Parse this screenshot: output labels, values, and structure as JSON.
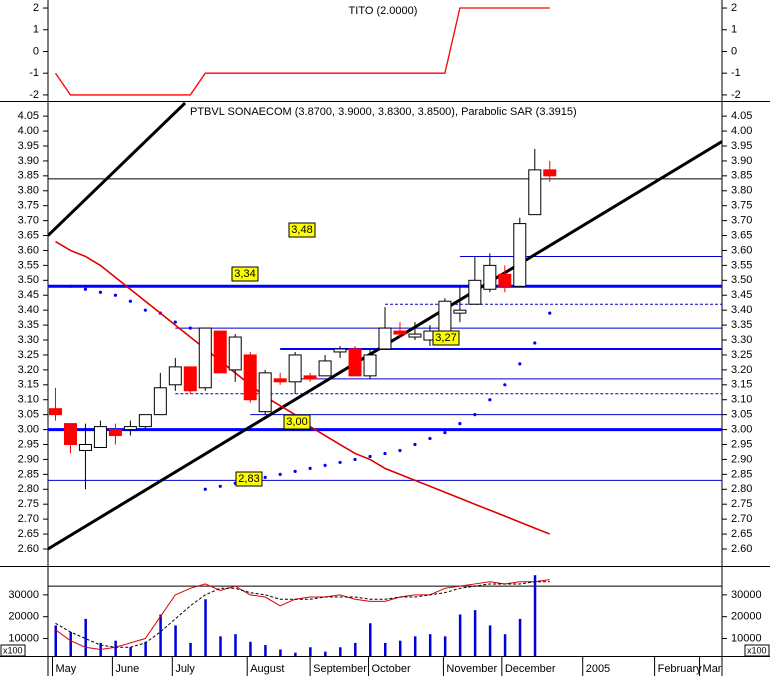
{
  "chart_data": [
    {
      "type": "line",
      "title": "TITO (2.0000)",
      "x": [
        0,
        1,
        2,
        3,
        4,
        5,
        6,
        7,
        8,
        9,
        10,
        11,
        12,
        13,
        14,
        15,
        16,
        17,
        18,
        19,
        20,
        21,
        22,
        23,
        24,
        25,
        26,
        27,
        28,
        29,
        30,
        31,
        32,
        33
      ],
      "series": [
        {
          "color": "#ff0000",
          "values": [
            -1,
            -2,
            -2,
            -2,
            -2,
            -2,
            -2,
            -2,
            -2,
            -2,
            -1,
            -1,
            -1,
            -1,
            -1,
            -1,
            -1,
            -1,
            -1,
            -1,
            -1,
            -1,
            -1,
            -1,
            -1,
            -1,
            -1,
            2,
            2,
            2,
            2,
            2,
            2,
            2
          ]
        }
      ],
      "xlim": [
        -0.5,
        44.5
      ],
      "ylim": [
        -2.28,
        2.37
      ],
      "yticks": [
        2,
        1,
        0,
        -1,
        -2
      ]
    },
    {
      "type": "candlestick",
      "title": "PTBVL SONAECOM (3.8700, 3.9000, 3.8300, 3.8500), Parabolic SAR (3.3915)",
      "x": [
        0,
        1,
        2,
        3,
        4,
        5,
        6,
        7,
        8,
        9,
        10,
        11,
        12,
        13,
        14,
        15,
        16,
        17,
        18,
        19,
        20,
        21,
        22,
        23,
        24,
        25,
        26,
        27,
        28,
        29,
        30,
        31,
        32,
        33
      ],
      "open": [
        3.07,
        3.02,
        2.93,
        2.94,
        3.0,
        3.0,
        3.01,
        3.05,
        3.15,
        3.21,
        3.14,
        3.33,
        3.2,
        3.25,
        3.06,
        3.17,
        3.16,
        3.18,
        3.18,
        3.26,
        3.27,
        3.18,
        3.27,
        3.33,
        3.31,
        3.3,
        3.33,
        3.39,
        3.42,
        3.47,
        3.52,
        3.48,
        3.72,
        3.87
      ],
      "high": [
        3.14,
        3.02,
        3.02,
        3.03,
        3.02,
        3.03,
        3.05,
        3.19,
        3.24,
        3.21,
        3.34,
        3.33,
        3.32,
        3.26,
        3.2,
        3.19,
        3.26,
        3.19,
        3.25,
        3.28,
        3.28,
        3.27,
        3.41,
        3.36,
        3.36,
        3.35,
        3.44,
        3.48,
        3.58,
        3.59,
        3.55,
        3.71,
        3.94,
        3.9
      ],
      "low": [
        3.03,
        2.92,
        2.8,
        2.94,
        2.95,
        2.98,
        3.0,
        3.05,
        3.13,
        3.12,
        3.13,
        3.19,
        3.16,
        3.09,
        3.05,
        3.15,
        3.12,
        3.16,
        3.18,
        3.24,
        3.18,
        3.17,
        3.27,
        3.31,
        3.3,
        3.28,
        3.31,
        3.36,
        3.42,
        3.46,
        3.46,
        3.48,
        3.72,
        3.83
      ],
      "close": [
        3.05,
        2.95,
        2.95,
        3.01,
        2.98,
        3.01,
        3.05,
        3.14,
        3.21,
        3.13,
        3.34,
        3.19,
        3.31,
        3.1,
        3.19,
        3.16,
        3.25,
        3.17,
        3.23,
        3.27,
        3.18,
        3.25,
        3.34,
        3.32,
        3.32,
        3.33,
        3.43,
        3.4,
        3.5,
        3.55,
        3.48,
        3.69,
        3.87,
        3.85
      ],
      "up_color": "#ffffff",
      "down_color": "#ff0000",
      "series": [
        {
          "style": "dots",
          "color": "#0000ff",
          "values": [
            null,
            3.48,
            3.47,
            3.46,
            3.45,
            3.43,
            3.4,
            3.39,
            3.36,
            3.34,
            2.8,
            2.81,
            2.82,
            2.83,
            2.84,
            2.85,
            2.86,
            2.87,
            2.88,
            2.89,
            2.9,
            2.91,
            2.92,
            2.93,
            2.95,
            2.97,
            2.99,
            3.02,
            3.05,
            3.1,
            3.15,
            3.22,
            3.29,
            3.39
          ]
        },
        {
          "style": "line",
          "color": "#e00000",
          "values": [
            3.63,
            3.6,
            3.58,
            3.55,
            3.51,
            3.47,
            3.43,
            3.39,
            3.35,
            3.31,
            3.27,
            3.23,
            3.19,
            3.15,
            3.11,
            3.08,
            3.05,
            3.01,
            2.98,
            2.95,
            2.92,
            2.9,
            2.87,
            2.85,
            2.83,
            2.81,
            2.79,
            2.77,
            2.75,
            2.73,
            2.71,
            2.69,
            2.67,
            2.65
          ]
        }
      ],
      "levels": [
        {
          "value": 3.48,
          "label": "3,48",
          "color": "#0000ff",
          "width": 3
        },
        {
          "value": 3.0,
          "label": "3,00",
          "color": "#0000ff",
          "width": 3
        },
        {
          "value": 3.34,
          "label": "3,34",
          "color": "#0000cc",
          "width": 1,
          "from": 8
        },
        {
          "value": 3.27,
          "label": "3,27",
          "color": "#0000ff",
          "width": 2,
          "from": 15
        },
        {
          "value": 2.83,
          "label": "2,83",
          "color": "#0000cc",
          "width": 1
        },
        {
          "value": 3.84,
          "color": "#000000",
          "width": 1
        },
        {
          "value": 3.58,
          "color": "#0000cc",
          "width": 1,
          "from": 27
        },
        {
          "value": 3.42,
          "color": "#0000cc",
          "width": 1,
          "from": 22,
          "dashed": true
        },
        {
          "value": 3.17,
          "color": "#0000cc",
          "width": 1,
          "from": 16
        },
        {
          "value": 3.12,
          "color": "#0000cc",
          "width": 1,
          "from": 8,
          "dashed": true
        },
        {
          "value": 3.05,
          "color": "#0000cc",
          "width": 1,
          "from": 13
        }
      ],
      "trend_lines": [
        {
          "color": "#000000",
          "x": [
            -0.5,
            8.65
          ],
          "y": [
            3.65,
            4.094
          ]
        },
        {
          "color": "#000000",
          "x": [
            -0.5,
            44.5
          ],
          "y": [
            2.6,
            3.965
          ]
        }
      ],
      "xlim": [
        -0.5,
        44.5
      ],
      "ylim": [
        2.543,
        4.094
      ],
      "yticks": [
        {
          "value": 4.05,
          "label": "4.05"
        },
        {
          "value": 4.0,
          "label": "4.00"
        },
        {
          "value": 3.95,
          "label": "3.95"
        },
        {
          "value": 3.9,
          "label": "3.90"
        },
        {
          "value": 3.85,
          "label": "3.85"
        },
        {
          "value": 3.8,
          "label": "3.80"
        },
        {
          "value": 3.75,
          "label": "3.75"
        },
        {
          "value": 3.7,
          "label": "3.70"
        },
        {
          "value": 3.65,
          "label": "3.65"
        },
        {
          "value": 3.6,
          "label": "3.60"
        },
        {
          "value": 3.55,
          "label": "3.55"
        },
        {
          "value": 3.5,
          "label": "3.50"
        },
        {
          "value": 3.45,
          "label": "3.45"
        },
        {
          "value": 3.4,
          "label": "3.40"
        },
        {
          "value": 3.35,
          "label": "3.35"
        },
        {
          "value": 3.3,
          "label": "3.30"
        },
        {
          "value": 3.25,
          "label": "3.25"
        },
        {
          "value": 3.2,
          "label": "3.20"
        },
        {
          "value": 3.15,
          "label": "3.15"
        },
        {
          "value": 3.1,
          "label": "3.10"
        },
        {
          "value": 3.05,
          "label": "3.05"
        },
        {
          "value": 3.0,
          "label": "3.00"
        },
        {
          "value": 2.95,
          "label": "2.95"
        },
        {
          "value": 2.9,
          "label": "2.90"
        },
        {
          "value": 2.85,
          "label": "2.85"
        },
        {
          "value": 2.8,
          "label": "2.80"
        },
        {
          "value": 2.75,
          "label": "2.75"
        },
        {
          "value": 2.7,
          "label": "2.70"
        },
        {
          "value": 2.65,
          "label": "2.65"
        },
        {
          "value": 2.6,
          "label": "2.60"
        }
      ]
    },
    {
      "type": "bar",
      "y_unit": "x100",
      "x": [
        0,
        1,
        2,
        3,
        4,
        5,
        6,
        7,
        8,
        9,
        10,
        11,
        12,
        13,
        14,
        15,
        16,
        17,
        18,
        19,
        20,
        21,
        22,
        23,
        24,
        25,
        26,
        27,
        28,
        29,
        30,
        31,
        32,
        33
      ],
      "values": [
        16000,
        13000,
        19000,
        8000,
        9000,
        6000,
        8500,
        21000,
        16000,
        8000,
        28000,
        11000,
        12000,
        8500,
        7000,
        5000,
        3500,
        6000,
        4000,
        6000,
        8000,
        17000,
        8000,
        9000,
        11000,
        12000,
        11000,
        21000,
        23000,
        16000,
        12000,
        19000,
        39000,
        2000
      ],
      "color": "#0000dd",
      "lines": [
        {
          "color": "#e00000",
          "values": [
            14000,
            9000,
            6000,
            5000,
            6000,
            8000,
            10000,
            20000,
            30000,
            33000,
            35000,
            32000,
            34000,
            30000,
            29000,
            25000,
            28000,
            29000,
            29000,
            30000,
            28000,
            27000,
            27000,
            29000,
            30000,
            30000,
            33000,
            34000,
            35000,
            36000,
            35000,
            36000,
            36000,
            37000
          ]
        },
        {
          "color": "#000000",
          "dashed": true,
          "values": [
            17000,
            13000,
            10000,
            7000,
            6000,
            6000,
            8000,
            13000,
            19000,
            25000,
            30000,
            33000,
            33000,
            31000,
            30000,
            28000,
            28000,
            28000,
            29000,
            29000,
            29000,
            28000,
            28000,
            29000,
            29000,
            30000,
            31000,
            33000,
            34000,
            35000,
            35000,
            35000,
            36000,
            36000
          ]
        }
      ],
      "levels": [
        {
          "value": 34000,
          "color": "#000000",
          "width": 1
        }
      ],
      "xlim": [
        -0.5,
        44.5
      ],
      "ylim": [
        2000,
        42300
      ],
      "yticks": [
        30000,
        20000,
        10000
      ],
      "xticks": [
        {
          "value": -0.2,
          "label": "May"
        },
        {
          "value": 3.8,
          "label": "June"
        },
        {
          "value": 7.8,
          "label": "July"
        },
        {
          "value": 12.8,
          "label": "August"
        },
        {
          "value": 17.0,
          "label": "September"
        },
        {
          "value": 20.9,
          "label": "October"
        },
        {
          "value": 25.9,
          "label": "November"
        },
        {
          "value": 29.8,
          "label": "December"
        },
        {
          "value": 35.2,
          "label": "2005"
        },
        {
          "value": 40.0,
          "label": "February"
        },
        {
          "value": 43.0,
          "label": "Mar"
        }
      ]
    }
  ]
}
